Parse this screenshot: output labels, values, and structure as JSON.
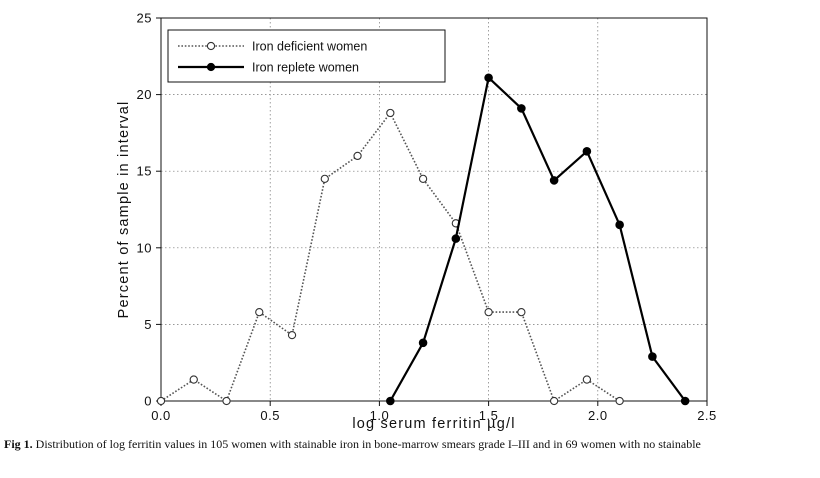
{
  "chart_data": {
    "type": "line",
    "xlabel": "log serum ferritin µg/l",
    "ylabel": "Percent of sample in interval",
    "xlim": [
      0,
      2.5
    ],
    "ylim": [
      0,
      25
    ],
    "xticks": [
      0.0,
      0.5,
      1.0,
      1.5,
      2.0,
      2.5
    ],
    "xtick_labels": [
      "0.0",
      "0.5",
      "1.0",
      "1.5",
      "2.0",
      "2.5"
    ],
    "yticks": [
      0,
      5,
      10,
      15,
      20,
      25
    ],
    "ytick_labels": [
      "0",
      "5",
      "10",
      "15",
      "20",
      "25"
    ],
    "grid": true,
    "legend_position": "top-left",
    "series": [
      {
        "name": "Iron deficient women",
        "marker": "open-circle",
        "line_style": "dotted",
        "color": "#555555",
        "x": [
          0.0,
          0.15,
          0.3,
          0.45,
          0.6,
          0.75,
          0.9,
          1.05,
          1.2,
          1.35,
          1.5,
          1.65,
          1.8,
          1.95,
          2.1
        ],
        "y": [
          0,
          1.4,
          0,
          5.8,
          4.3,
          14.5,
          16.0,
          18.8,
          14.5,
          11.6,
          5.8,
          5.8,
          0,
          1.4,
          0
        ]
      },
      {
        "name": "Iron replete women",
        "marker": "filled-circle",
        "line_style": "solid",
        "color": "#000000",
        "x": [
          1.05,
          1.2,
          1.35,
          1.5,
          1.65,
          1.8,
          1.95,
          2.1,
          2.25,
          2.4
        ],
        "y": [
          0,
          3.8,
          10.6,
          21.1,
          19.1,
          14.4,
          16.3,
          11.5,
          2.9,
          0
        ]
      }
    ]
  },
  "caption": {
    "label": "Fig 1.",
    "text": "Distribution of log ferritin values in 105 women with stainable iron in bone-marrow smears grade I–III and in 69 women with no stainable"
  }
}
